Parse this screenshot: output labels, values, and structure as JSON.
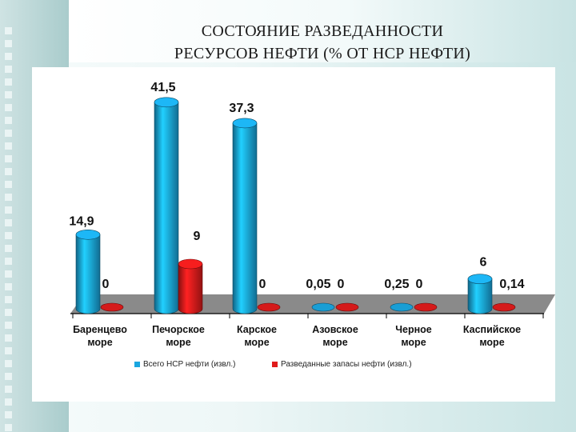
{
  "slide": {
    "title_line1": "СОСТОЯНИЕ РАЗВЕДАННОСТИ",
    "title_line2": "РЕСУРСОВ НЕФТИ (% ОТ НСР НЕФТИ)"
  },
  "colors": {
    "series1": "#1aa6e0",
    "series2": "#e01b1b",
    "floor": "#8a8a8a"
  },
  "chart_data": {
    "type": "bar",
    "style": "3d-cylinder",
    "categories": [
      [
        "Баренцево",
        "море"
      ],
      [
        "Печорское",
        "море"
      ],
      [
        "Карское",
        "море"
      ],
      [
        "Азовское",
        "море"
      ],
      [
        "Черное",
        "море"
      ],
      [
        "Каспийское",
        "море"
      ]
    ],
    "series": [
      {
        "name": "Всего НСР нефти (извл.)",
        "values": [
          14.9,
          41.5,
          37.3,
          0.05,
          0.25,
          6
        ],
        "labels": [
          "14,9",
          "41,5",
          "37,3",
          "0,05",
          "0,25",
          "6"
        ]
      },
      {
        "name": "Разведанные запасы нефти (извл.)",
        "values": [
          0,
          9,
          0,
          0,
          0,
          0.14
        ],
        "labels": [
          "0",
          "9",
          "0",
          "0",
          "0",
          "0,14"
        ]
      }
    ],
    "ylim": [
      0,
      45
    ],
    "legend": "bottom",
    "grid": false
  }
}
